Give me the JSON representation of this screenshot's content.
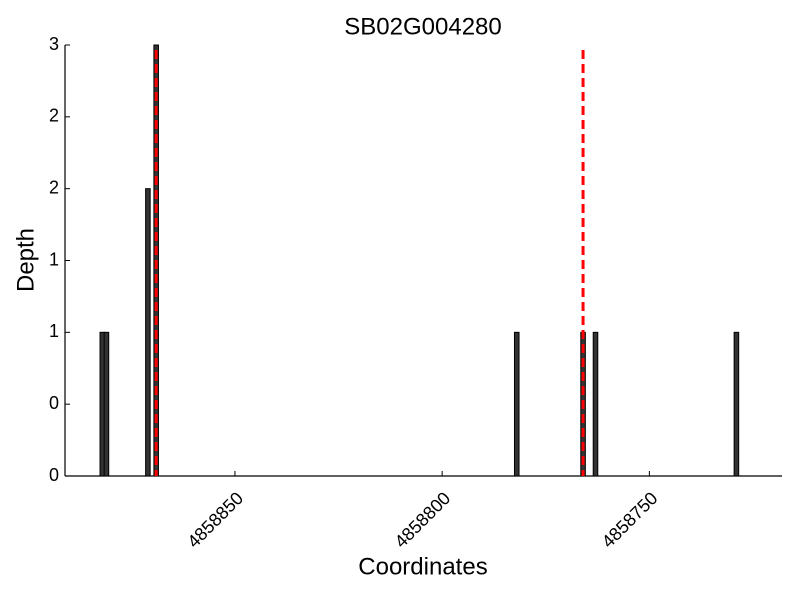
{
  "chart_data": {
    "type": "bar",
    "title": "SB02G004280",
    "xlabel": "Coordinates",
    "ylabel": "Depth",
    "x": [
      4858882,
      4858881,
      4858871,
      4858869,
      4858782,
      4858766,
      4858763,
      4858729
    ],
    "values": [
      1,
      1,
      2,
      3,
      1,
      1,
      1,
      1
    ],
    "color": "#333333",
    "xlim": [
      4858891,
      4858718
    ],
    "xticks": [
      4858850,
      4858800,
      4858750
    ],
    "ylim": [
      0,
      3
    ],
    "yticks": [
      0,
      {
        "value": 0.5,
        "label": "0"
      },
      1,
      {
        "value": 1.5,
        "label": "1"
      },
      2,
      {
        "value": 2.5,
        "label": "2"
      },
      3
    ],
    "markers": [
      4858869,
      4858766
    ],
    "marker_color": "#ff0000"
  }
}
